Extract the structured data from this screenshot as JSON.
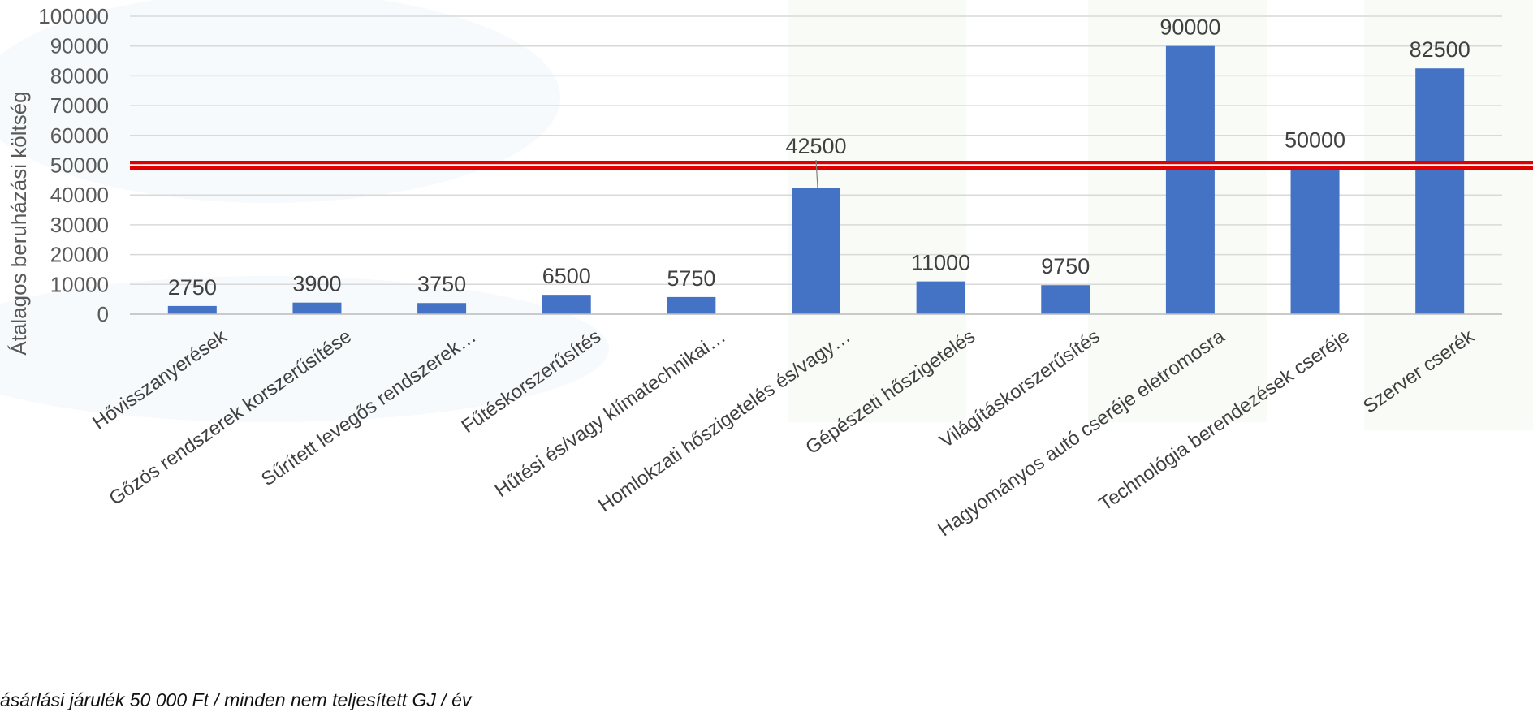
{
  "chart_data": {
    "type": "bar",
    "ylabel": "Átalagos beruházási költség",
    "ylim": [
      0,
      100000
    ],
    "yticks": [
      0,
      10000,
      20000,
      30000,
      40000,
      50000,
      60000,
      70000,
      80000,
      90000,
      100000
    ],
    "grid": true,
    "categories": [
      "Hővisszanyerések",
      "Gőzös rendszerek korszerűsítése",
      "Sűrített levegős rendszerek…",
      "Fűtéskorszerűsítés",
      "Hűtési és/vagy klímatechnikai…",
      "Homlokzati hőszigetelés és/vagy…",
      "Gépészeti hőszigetelés",
      "Világításkorszerűsítés",
      "Hagyományos autó cseréje eletromosra",
      "Technológia berendezések cseréje",
      "Szerver cserék"
    ],
    "values": [
      2750,
      3900,
      3750,
      6500,
      5750,
      42500,
      11000,
      9750,
      90000,
      50000,
      82500
    ],
    "data_labels": [
      "2750",
      "3900",
      "3750",
      "6500",
      "5750",
      "42500",
      "11000",
      "9750",
      "90000",
      "50000",
      "82500"
    ],
    "reference_line": {
      "value": 50000
    },
    "colors": {
      "bar": "#4472C4",
      "reference": "#E00000",
      "grid": "#D9D9D9",
      "text": "#404040"
    }
  },
  "footnote": "ásárlási járulék 50 000 Ft / minden nem teljesített GJ / év"
}
